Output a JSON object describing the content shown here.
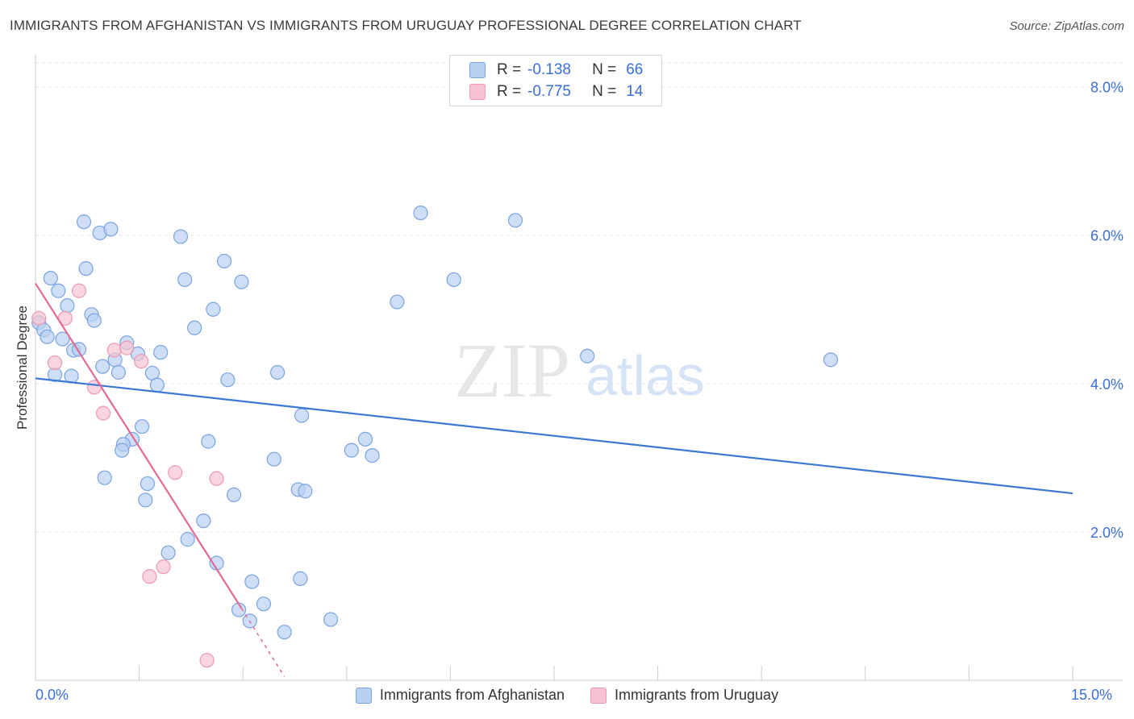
{
  "header": {
    "title": "IMMIGRANTS FROM AFGHANISTAN VS IMMIGRANTS FROM URUGUAY PROFESSIONAL DEGREE CORRELATION CHART",
    "source": "Source: ZipAtlas.com"
  },
  "watermark": {
    "zip": "ZIP",
    "atlas": "atlas"
  },
  "legend_stats": {
    "rows": [
      {
        "r_label": "R =",
        "r_value": "-0.138",
        "n_label": "N =",
        "n_value": "66"
      },
      {
        "r_label": "R =",
        "r_value": "-0.775",
        "n_label": "N =",
        "n_value": "14"
      }
    ]
  },
  "colors": {
    "afghanistan_fill": "#b8d0f2",
    "afghanistan_stroke": "#7aa3e0",
    "afghanistan_line": "#3a78d4",
    "uruguay_fill": "#f7c3d2",
    "uruguay_stroke": "#ee98b2",
    "uruguay_line": "#e06a95",
    "tick_label": "#3a6fd8"
  },
  "chart_data": {
    "type": "scatter",
    "title": "IMMIGRANTS FROM AFGHANISTAN VS IMMIGRANTS FROM URUGUAY PROFESSIONAL DEGREE CORRELATION CHART",
    "xlabel": "",
    "ylabel": "Professional Degree",
    "xlim": [
      0,
      15
    ],
    "ylim": [
      0,
      8.3
    ],
    "x_tick_labels": [
      "0.0%",
      "15.0%"
    ],
    "y_ticks": [
      2,
      4,
      6,
      8
    ],
    "y_tick_labels": [
      "2.0%",
      "4.0%",
      "6.0%",
      "8.0%"
    ],
    "grid": true,
    "series": [
      {
        "name": "Immigrants from Afghanistan",
        "points": [
          [
            0.7,
            6.18
          ],
          [
            0.93,
            6.03
          ],
          [
            1.09,
            6.08
          ],
          [
            2.1,
            5.98
          ],
          [
            5.57,
            6.3
          ],
          [
            6.94,
            6.2
          ],
          [
            0.22,
            5.42
          ],
          [
            0.73,
            5.55
          ],
          [
            2.16,
            5.4
          ],
          [
            2.73,
            5.65
          ],
          [
            2.98,
            5.37
          ],
          [
            6.05,
            5.4
          ],
          [
            0.33,
            5.25
          ],
          [
            0.46,
            5.05
          ],
          [
            0.81,
            4.93
          ],
          [
            0.85,
            4.85
          ],
          [
            2.57,
            5.0
          ],
          [
            5.23,
            5.1
          ],
          [
            0.05,
            4.82
          ],
          [
            0.12,
            4.72
          ],
          [
            0.17,
            4.63
          ],
          [
            0.39,
            4.6
          ],
          [
            2.3,
            4.75
          ],
          [
            0.55,
            4.45
          ],
          [
            0.63,
            4.46
          ],
          [
            1.32,
            4.55
          ],
          [
            1.48,
            4.4
          ],
          [
            1.81,
            4.42
          ],
          [
            0.97,
            4.23
          ],
          [
            1.15,
            4.32
          ],
          [
            1.2,
            4.15
          ],
          [
            1.69,
            4.14
          ],
          [
            2.78,
            4.05
          ],
          [
            3.5,
            4.15
          ],
          [
            7.98,
            4.37
          ],
          [
            11.5,
            4.32
          ],
          [
            0.28,
            4.12
          ],
          [
            0.52,
            4.1
          ],
          [
            1.76,
            3.98
          ],
          [
            1.54,
            3.42
          ],
          [
            3.85,
            3.57
          ],
          [
            1.4,
            3.25
          ],
          [
            1.27,
            3.18
          ],
          [
            1.25,
            3.1
          ],
          [
            2.5,
            3.22
          ],
          [
            4.57,
            3.1
          ],
          [
            4.77,
            3.25
          ],
          [
            4.87,
            3.03
          ],
          [
            3.45,
            2.98
          ],
          [
            1.0,
            2.73
          ],
          [
            1.62,
            2.65
          ],
          [
            3.8,
            2.57
          ],
          [
            3.9,
            2.55
          ],
          [
            2.87,
            2.5
          ],
          [
            1.59,
            2.43
          ],
          [
            2.43,
            2.15
          ],
          [
            2.2,
            1.9
          ],
          [
            1.92,
            1.72
          ],
          [
            2.62,
            1.58
          ],
          [
            3.13,
            1.33
          ],
          [
            3.83,
            1.37
          ],
          [
            3.3,
            1.03
          ],
          [
            2.94,
            0.95
          ],
          [
            3.1,
            0.8
          ],
          [
            4.27,
            0.82
          ],
          [
            3.6,
            0.65
          ]
        ],
        "trend": {
          "x": [
            0,
            15
          ],
          "y": [
            4.07,
            2.52
          ]
        }
      },
      {
        "name": "Immigrants from Uruguay",
        "points": [
          [
            0.05,
            4.88
          ],
          [
            0.43,
            4.88
          ],
          [
            0.63,
            5.25
          ],
          [
            1.14,
            4.45
          ],
          [
            1.32,
            4.48
          ],
          [
            0.28,
            4.28
          ],
          [
            1.53,
            4.3
          ],
          [
            0.85,
            3.95
          ],
          [
            0.98,
            3.6
          ],
          [
            2.02,
            2.8
          ],
          [
            2.62,
            2.72
          ],
          [
            1.85,
            1.53
          ],
          [
            1.65,
            1.4
          ],
          [
            2.48,
            0.27
          ]
        ],
        "trend": {
          "x": [
            0,
            2.98
          ],
          "y": [
            5.35,
            0.97
          ],
          "dashed_to": [
            3.6,
            0.05
          ]
        }
      }
    ]
  }
}
